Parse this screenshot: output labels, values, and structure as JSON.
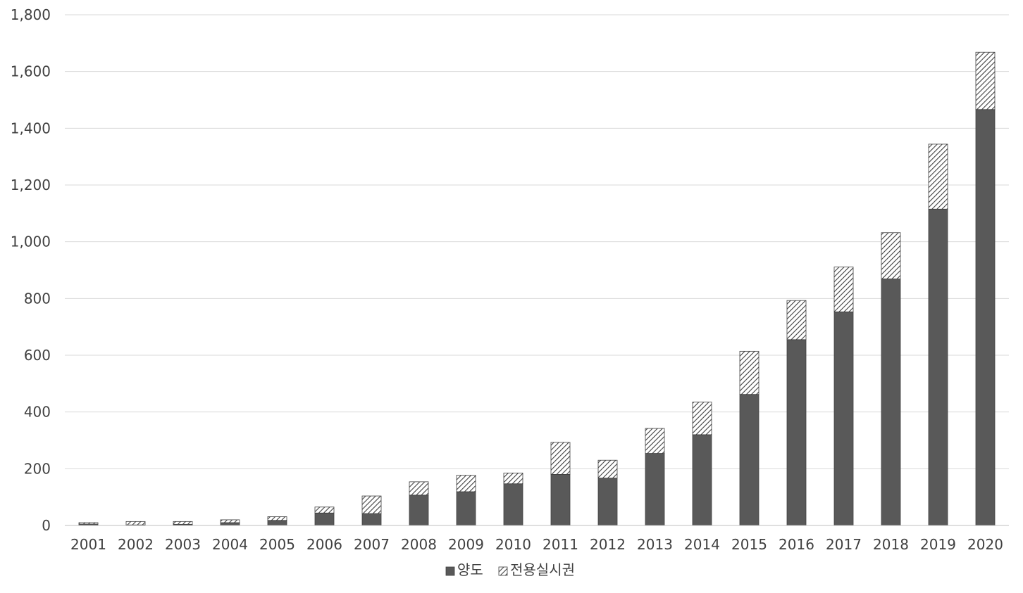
{
  "chart_data": {
    "type": "bar",
    "stacked": true,
    "categories": [
      "2001",
      "2002",
      "2003",
      "2004",
      "2005",
      "2006",
      "2007",
      "2008",
      "2009",
      "2010",
      "2011",
      "2012",
      "2013",
      "2014",
      "2015",
      "2016",
      "2017",
      "2018",
      "2019",
      "2020"
    ],
    "series": [
      {
        "name": "양도",
        "values": [
          5,
          2,
          4,
          10,
          18,
          44,
          42,
          107,
          119,
          147,
          180,
          167,
          254,
          320,
          462,
          655,
          753,
          869,
          1115,
          1466
        ],
        "color": "#595959",
        "pattern": "solid"
      },
      {
        "name": "전용실시권",
        "values": [
          5,
          12,
          10,
          10,
          13,
          21,
          62,
          47,
          58,
          38,
          113,
          63,
          88,
          115,
          152,
          138,
          158,
          163,
          229,
          202
        ],
        "color": "#595959",
        "pattern": "diagonal-hatch"
      }
    ],
    "ylim": [
      0,
      1800
    ],
    "yticks": [
      0,
      200,
      400,
      600,
      800,
      1000,
      1200,
      1400,
      1600,
      1800
    ],
    "ytick_labels": [
      "0",
      "200",
      "400",
      "600",
      "800",
      "1,000",
      "1,200",
      "1,400",
      "1,600",
      "1,800"
    ],
    "grid": true,
    "legend_position": "bottom-center",
    "title": "",
    "xlabel": "",
    "ylabel": ""
  }
}
